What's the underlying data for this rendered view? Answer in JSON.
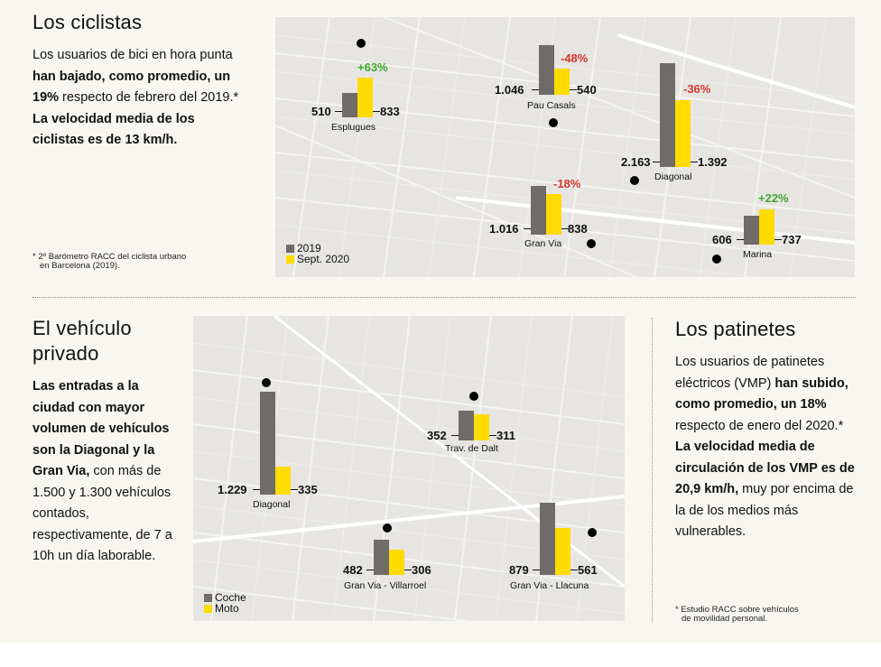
{
  "cyclists": {
    "title": "Los ciclistas",
    "p1_a": "Los usuarios de bici en hora punta ",
    "p1_b": "han bajado, como promedio, un 19%",
    "p1_c": " respecto de febrero del 2019.*",
    "p2": "La velocidad media de los ciclistas es de 13 km/h.",
    "footnote_1": "* 2º Barómetro RACC del ciclista urbano",
    "footnote_2": "en Barcelona (2019).",
    "legend": {
      "a": "2019",
      "b": "Sept. 2020"
    }
  },
  "vehicles": {
    "title_1": "El vehículo",
    "title_2": "privado",
    "p_bold": "Las entradas a la ciudad con mayor volumen de vehículos son la Diagonal y la Gran Via,",
    "p_rest": " con más de 1.500 y 1.300 vehículos contados, respectivamente, de 7 a 10h un día laborable.",
    "legend": {
      "a": "Coche",
      "b": "Moto"
    }
  },
  "scooters": {
    "title": "Los patinetes",
    "p1_a": "Los usuarios de patinetes eléctricos (VMP) ",
    "p1_b": "han subido, como promedio, un 18%",
    "p1_c": " respecto de enero del 2020.*",
    "p2_b": "La velocidad media de circulación de los VMP es de 20,9 km/h,",
    "p2_c": " muy por encima de la de los medios más vulnerables.",
    "footnote_1": "* Estudio RACC sobre vehículos",
    "footnote_2": "de movilidad personal."
  },
  "colors": {
    "gray": "#6f6b69",
    "yellow": "#ffdb00",
    "positive": "#3fa82d",
    "negative": "#d6372a"
  },
  "chart_data": [
    {
      "type": "bar",
      "title": "Los ciclistas",
      "series": [
        {
          "name": "2019"
        },
        {
          "name": "Sept. 2020"
        }
      ],
      "locations": [
        {
          "name": "Esplugues",
          "v2019": 510,
          "v2020": 833,
          "v2019_label": "510",
          "v2020_label": "833",
          "change": "+63%",
          "dir": "pos"
        },
        {
          "name": "Pau Casals",
          "v2019": 1046,
          "v2020": 540,
          "v2019_label": "1.046",
          "v2020_label": "540",
          "change": "-48%",
          "dir": "neg"
        },
        {
          "name": "Diagonal",
          "v2019": 2163,
          "v2020": 1392,
          "v2019_label": "2.163",
          "v2020_label": "1.392",
          "change": "-36%",
          "dir": "neg"
        },
        {
          "name": "Gran Via",
          "v2019": 1016,
          "v2020": 838,
          "v2019_label": "1.016",
          "v2020_label": "838",
          "change": "-18%",
          "dir": "neg"
        },
        {
          "name": "Marina",
          "v2019": 606,
          "v2020": 737,
          "v2019_label": "606",
          "v2020_label": "737",
          "change": "+22%",
          "dir": "pos"
        }
      ]
    },
    {
      "type": "bar",
      "title": "El vehículo privado",
      "series": [
        {
          "name": "Coche"
        },
        {
          "name": "Moto"
        }
      ],
      "locations": [
        {
          "name": "Diagonal",
          "coche": 1229,
          "moto": 335,
          "coche_label": "1.229",
          "moto_label": "335"
        },
        {
          "name": "Trav. de Dalt",
          "coche": 352,
          "moto": 311,
          "coche_label": "352",
          "moto_label": "311"
        },
        {
          "name": "Gran Via - Villarroel",
          "coche": 482,
          "moto": 306,
          "coche_label": "482",
          "moto_label": "306"
        },
        {
          "name": "Gran Via - Llacuna",
          "coche": 879,
          "moto": 561,
          "coche_label": "879",
          "moto_label": "561"
        }
      ]
    }
  ]
}
